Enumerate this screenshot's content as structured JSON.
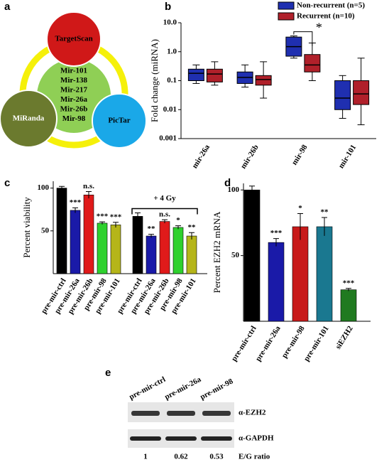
{
  "panel_labels": [
    "a",
    "b",
    "c",
    "d",
    "e"
  ],
  "venn": {
    "top": "TargetScan",
    "left": "MiRanda",
    "right": "PicTar",
    "center": [
      "Mir-101",
      "Mir-138",
      "Mir-217",
      "Mir-26a",
      "Mir-26b",
      "Mir-98"
    ]
  },
  "chart_data": [
    {
      "type": "box",
      "ylabel": "Fold change (miRNA)",
      "yscale": "log",
      "ylim": [
        0.001,
        10
      ],
      "yticks": [
        0.001,
        0.01,
        0.1,
        {
          "value": 1,
          "label": "1.0"
        },
        {
          "value": 10,
          "label": "10.0"
        }
      ],
      "categories": [
        "mir-26a",
        "mir-26b",
        "mir-98",
        "mir-101"
      ],
      "series": [
        {
          "name": "Non-recurrent (n=5)",
          "color": "#1f2fb0",
          "min": [
            0.08,
            0.06,
            0.6,
            0.005
          ],
          "q1": [
            0.1,
            0.08,
            0.7,
            0.01
          ],
          "median": [
            0.18,
            0.13,
            1.5,
            0.025
          ],
          "q3": [
            0.25,
            0.2,
            3.2,
            0.1
          ],
          "max": [
            0.35,
            0.35,
            3.5,
            0.15
          ]
        },
        {
          "name": "Recurrent (n=10)",
          "color": "#b0202a",
          "min": [
            0.07,
            0.025,
            0.1,
            0.003
          ],
          "q1": [
            0.09,
            0.07,
            0.2,
            0.015
          ],
          "median": [
            0.17,
            0.11,
            0.35,
            0.035
          ],
          "q3": [
            0.25,
            0.15,
            0.8,
            0.1
          ],
          "max": [
            0.45,
            0.45,
            2,
            0.6
          ]
        }
      ],
      "annotation": "*"
    },
    {
      "type": "bar",
      "ylabel": "Percent viability",
      "ylim": [
        0,
        108
      ],
      "yticks": [
        50,
        100
      ],
      "categories": [
        "pre-mir-ctrl",
        "pre-mir-26a",
        "pre-mir-26b",
        "pre-mir-98",
        "pre-mir-101",
        "pre-mir-ctrl",
        "pre-mir-26a",
        "pre-mir-26b",
        "pre-mir-98",
        "pre-mir-101"
      ],
      "values": [
        100,
        74,
        92,
        59,
        57,
        67,
        44,
        61,
        54,
        44
      ],
      "errors": [
        2,
        3,
        4,
        1.5,
        3,
        4,
        2,
        2,
        2,
        4
      ],
      "colors": [
        "#000000",
        "#1a1aa8",
        "#e01a1a",
        "#2ed12e",
        "#b5b51a",
        "#000000",
        "#1a1aa8",
        "#e01a1a",
        "#2ed12e",
        "#b5b51a"
      ],
      "significance": [
        null,
        "***",
        "n.s.",
        "***",
        "***",
        null,
        "**",
        "n.s.",
        "*",
        "**"
      ],
      "annotation": "+ 4 Gy"
    },
    {
      "type": "bar",
      "ylabel": "Percent EZH2 mRNA",
      "ylim": [
        0,
        105
      ],
      "yticks": [
        50,
        100
      ],
      "categories": [
        "pre-mir-ctrl",
        "pre-mir-26a",
        "pre-mir-98",
        "pre-mir-101",
        "siEZH2"
      ],
      "values": [
        100,
        60,
        72,
        72,
        24
      ],
      "errors": [
        3,
        3,
        10,
        7,
        1
      ],
      "colors": [
        "#000000",
        "#1a1aa8",
        "#c81a1a",
        "#1a7890",
        "#207a20"
      ],
      "significance": [
        null,
        "***",
        "*",
        "**",
        "***"
      ]
    }
  ],
  "blot": {
    "lanes": [
      "pre-mir-ctrl",
      "pre-mir-26a",
      "pre-mir-98"
    ],
    "bands": [
      "α-EZH2",
      "α-GAPDH"
    ],
    "ratio_label": "E/G ratio",
    "ratios": [
      1,
      0.62,
      0.53
    ]
  }
}
